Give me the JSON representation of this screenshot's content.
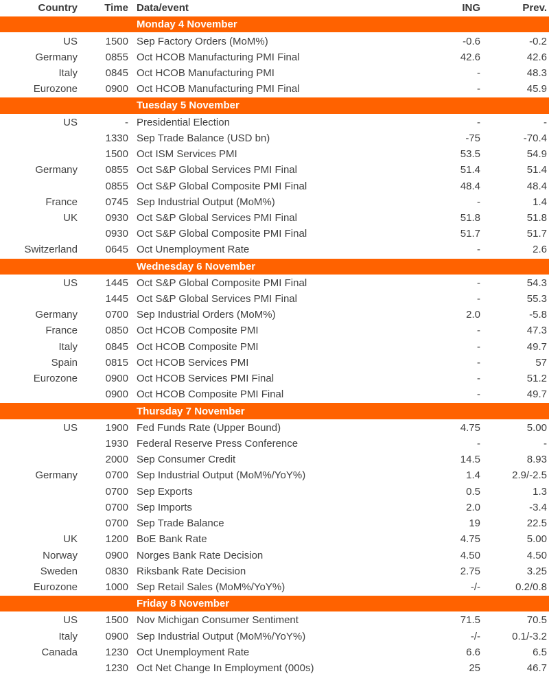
{
  "table": {
    "accent_color": "#FF6200",
    "text_color": "#404040",
    "columns": {
      "country": "Country",
      "time": "Time",
      "event": "Data/event",
      "ing": "ING",
      "prev": "Prev."
    },
    "sections": [
      {
        "day": "Monday 4 November",
        "rows": [
          {
            "country": "US",
            "time": "1500",
            "event": "Sep Factory Orders (MoM%)",
            "ing": "-0.6",
            "prev": "-0.2"
          },
          {
            "country": "Germany",
            "time": "0855",
            "event": "Oct HCOB Manufacturing PMI Final",
            "ing": "42.6",
            "prev": "42.6"
          },
          {
            "country": "Italy",
            "time": "0845",
            "event": "Oct HCOB Manufacturing PMI",
            "ing": "-",
            "prev": "48.3"
          },
          {
            "country": "Eurozone",
            "time": "0900",
            "event": "Oct HCOB Manufacturing PMI Final",
            "ing": "-",
            "prev": "45.9"
          }
        ]
      },
      {
        "day": "Tuesday 5 November",
        "rows": [
          {
            "country": "US",
            "time": "-",
            "event": "Presidential Election",
            "ing": "-",
            "prev": "-"
          },
          {
            "country": "",
            "time": "1330",
            "event": "Sep Trade Balance (USD bn)",
            "ing": "-75",
            "prev": "-70.4"
          },
          {
            "country": "",
            "time": "1500",
            "event": "Oct ISM Services PMI",
            "ing": "53.5",
            "prev": "54.9"
          },
          {
            "country": "Germany",
            "time": "0855",
            "event": "Oct S&P Global Services PMI Final",
            "ing": "51.4",
            "prev": "51.4"
          },
          {
            "country": "",
            "time": "0855",
            "event": "Oct S&P Global Composite PMI Final",
            "ing": "48.4",
            "prev": "48.4"
          },
          {
            "country": "France",
            "time": "0745",
            "event": "Sep Industrial Output (MoM%)",
            "ing": "-",
            "prev": "1.4"
          },
          {
            "country": "UK",
            "time": "0930",
            "event": "Oct S&P Global Services PMI Final",
            "ing": "51.8",
            "prev": "51.8"
          },
          {
            "country": "",
            "time": "0930",
            "event": "Oct S&P Global Composite PMI Final",
            "ing": "51.7",
            "prev": "51.7"
          },
          {
            "country": "Switzerland",
            "time": "0645",
            "event": "Oct Unemployment Rate",
            "ing": "-",
            "prev": "2.6"
          }
        ]
      },
      {
        "day": "Wednesday 6 November",
        "rows": [
          {
            "country": "US",
            "time": "1445",
            "event": "Oct S&P Global Composite PMI Final",
            "ing": "-",
            "prev": "54.3"
          },
          {
            "country": "",
            "time": "1445",
            "event": "Oct S&P Global Services PMI Final",
            "ing": "-",
            "prev": "55.3"
          },
          {
            "country": "Germany",
            "time": "0700",
            "event": "Sep Industrial Orders (MoM%)",
            "ing": "2.0",
            "prev": "-5.8"
          },
          {
            "country": "France",
            "time": "0850",
            "event": "Oct HCOB Composite PMI",
            "ing": "-",
            "prev": "47.3"
          },
          {
            "country": "Italy",
            "time": "0845",
            "event": "Oct HCOB Composite PMI",
            "ing": "-",
            "prev": "49.7"
          },
          {
            "country": "Spain",
            "time": "0815",
            "event": "Oct HCOB Services PMI",
            "ing": "-",
            "prev": "57"
          },
          {
            "country": "Eurozone",
            "time": "0900",
            "event": "Oct HCOB Services PMI Final",
            "ing": "-",
            "prev": "51.2"
          },
          {
            "country": "",
            "time": "0900",
            "event": "Oct HCOB Composite PMI Final",
            "ing": "-",
            "prev": "49.7"
          }
        ]
      },
      {
        "day": "Thursday 7 November",
        "rows": [
          {
            "country": "US",
            "time": "1900",
            "event": "Fed Funds Rate (Upper Bound)",
            "ing": "4.75",
            "prev": "5.00"
          },
          {
            "country": "",
            "time": "1930",
            "event": "Federal Reserve Press Conference",
            "ing": "-",
            "prev": "-"
          },
          {
            "country": "",
            "time": "2000",
            "event": "Sep Consumer Credit",
            "ing": "14.5",
            "prev": "8.93"
          },
          {
            "country": "Germany",
            "time": "0700",
            "event": "Sep Industrial Output (MoM%/YoY%)",
            "ing": "1.4",
            "prev": "2.9/-2.5"
          },
          {
            "country": "",
            "time": "0700",
            "event": "Sep Exports",
            "ing": "0.5",
            "prev": "1.3"
          },
          {
            "country": "",
            "time": "0700",
            "event": "Sep Imports",
            "ing": "2.0",
            "prev": "-3.4"
          },
          {
            "country": "",
            "time": "0700",
            "event": "Sep Trade Balance",
            "ing": "19",
            "prev": "22.5"
          },
          {
            "country": "UK",
            "time": "1200",
            "event": "BoE Bank Rate",
            "ing": "4.75",
            "prev": "5.00"
          },
          {
            "country": "Norway",
            "time": "0900",
            "event": "Norges Bank Rate Decision",
            "ing": "4.50",
            "prev": "4.50"
          },
          {
            "country": "Sweden",
            "time": "0830",
            "event": "Riksbank Rate Decision",
            "ing": "2.75",
            "prev": "3.25"
          },
          {
            "country": "Eurozone",
            "time": "1000",
            "event": "Sep Retail Sales (MoM%/YoY%)",
            "ing": "-/-",
            "prev": "0.2/0.8"
          }
        ]
      },
      {
        "day": "Friday 8 November",
        "rows": [
          {
            "country": "US",
            "time": "1500",
            "event": "Nov Michigan Consumer Sentiment",
            "ing": "71.5",
            "prev": "70.5"
          },
          {
            "country": "Italy",
            "time": "0900",
            "event": "Sep Industrial Output (MoM%/YoY%)",
            "ing": "-/-",
            "prev": "0.1/-3.2"
          },
          {
            "country": "Canada",
            "time": "1230",
            "event": "Oct Unemployment Rate",
            "ing": "6.6",
            "prev": "6.5"
          },
          {
            "country": "",
            "time": "1230",
            "event": "Oct Net Change In Employment (000s)",
            "ing": "25",
            "prev": "46.7"
          }
        ]
      }
    ]
  }
}
